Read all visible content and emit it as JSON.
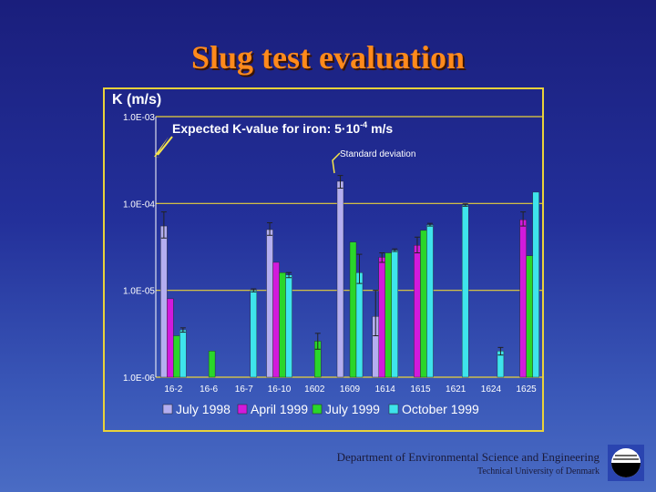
{
  "slide": {
    "title": "Slug test evaluation",
    "department": "Department of Environmental Science and Engineering",
    "university": "Technical University of Denmark"
  },
  "chart_data": {
    "type": "bar",
    "yscale": "log",
    "ylabel": "K (m/s)",
    "ylim": [
      1e-06,
      0.001
    ],
    "yticks": [
      {
        "value": 1e-06,
        "label": "1.0E-06"
      },
      {
        "value": 1e-05,
        "label": "1.0E-05"
      },
      {
        "value": 0.0001,
        "label": "1.0E-04"
      },
      {
        "value": 0.001,
        "label": "1.0E-03"
      }
    ],
    "categories": [
      "16-2",
      "16-6",
      "16-7",
      "16-10",
      "1602",
      "1609",
      "1614",
      "1615",
      "1621",
      "1624",
      "1625"
    ],
    "series": [
      {
        "name": "July 1998",
        "color": "#b4aef0",
        "values": [
          5.5e-05,
          null,
          null,
          5e-05,
          null,
          0.00018,
          5e-06,
          null,
          null,
          null,
          null
        ],
        "errors": [
          [
            4e-05,
            8e-05
          ],
          null,
          null,
          [
            4.3e-05,
            6e-05
          ],
          null,
          [
            0.00015,
            0.00021
          ],
          [
            3e-06,
            1e-05
          ],
          null,
          null,
          null,
          null
        ]
      },
      {
        "name": "April 1999",
        "color": "#d21adc",
        "values": [
          8e-06,
          null,
          null,
          2.1e-05,
          null,
          null,
          2.4e-05,
          3.3e-05,
          null,
          null,
          6.5e-05
        ],
        "errors": [
          null,
          null,
          null,
          null,
          null,
          null,
          [
            2.1e-05,
            2.7e-05
          ],
          [
            2.7e-05,
            4.1e-05
          ],
          null,
          null,
          [
            5.5e-05,
            8e-05
          ]
        ]
      },
      {
        "name": "July 1999",
        "color": "#2ad62a",
        "values": [
          3e-06,
          2e-06,
          null,
          1.6e-05,
          2.6e-06,
          3.6e-05,
          2.7e-05,
          4.9e-05,
          null,
          null,
          2.5e-05
        ],
        "errors": [
          null,
          null,
          null,
          null,
          [
            2.1e-06,
            3.2e-06
          ],
          null,
          null,
          null,
          null,
          null,
          null
        ]
      },
      {
        "name": "October 1999",
        "color": "#3ee4ec",
        "values": [
          3.5e-06,
          null,
          1e-05,
          1.5e-05,
          null,
          1.6e-05,
          2.9e-05,
          5.7e-05,
          9.6e-05,
          2e-06,
          0.000135
        ],
        "errors": [
          [
            3.3e-06,
            3.7e-06
          ],
          null,
          [
            9.6e-06,
            1.04e-05
          ],
          [
            1.4e-05,
            1.6e-05
          ],
          null,
          [
            1.2e-05,
            2.6e-05
          ],
          [
            2.8e-05,
            3e-05
          ],
          [
            5.5e-05,
            5.9e-05
          ],
          [
            9.3e-05,
            9.9e-05
          ],
          [
            1.8e-06,
            2.2e-06
          ],
          null
        ]
      }
    ],
    "annotations": {
      "expected_prefix": "Expected K-value for iron: 5·10",
      "expected_exp": "-4",
      "expected_unit": " m/s",
      "stddev_label": "Standard deviation"
    },
    "grid": true,
    "legend_position": "bottom"
  },
  "colors": {
    "title": "#ff8a1c",
    "frame": "#e9d23a",
    "text": "#ffffff",
    "grid": "#e9d23a"
  }
}
